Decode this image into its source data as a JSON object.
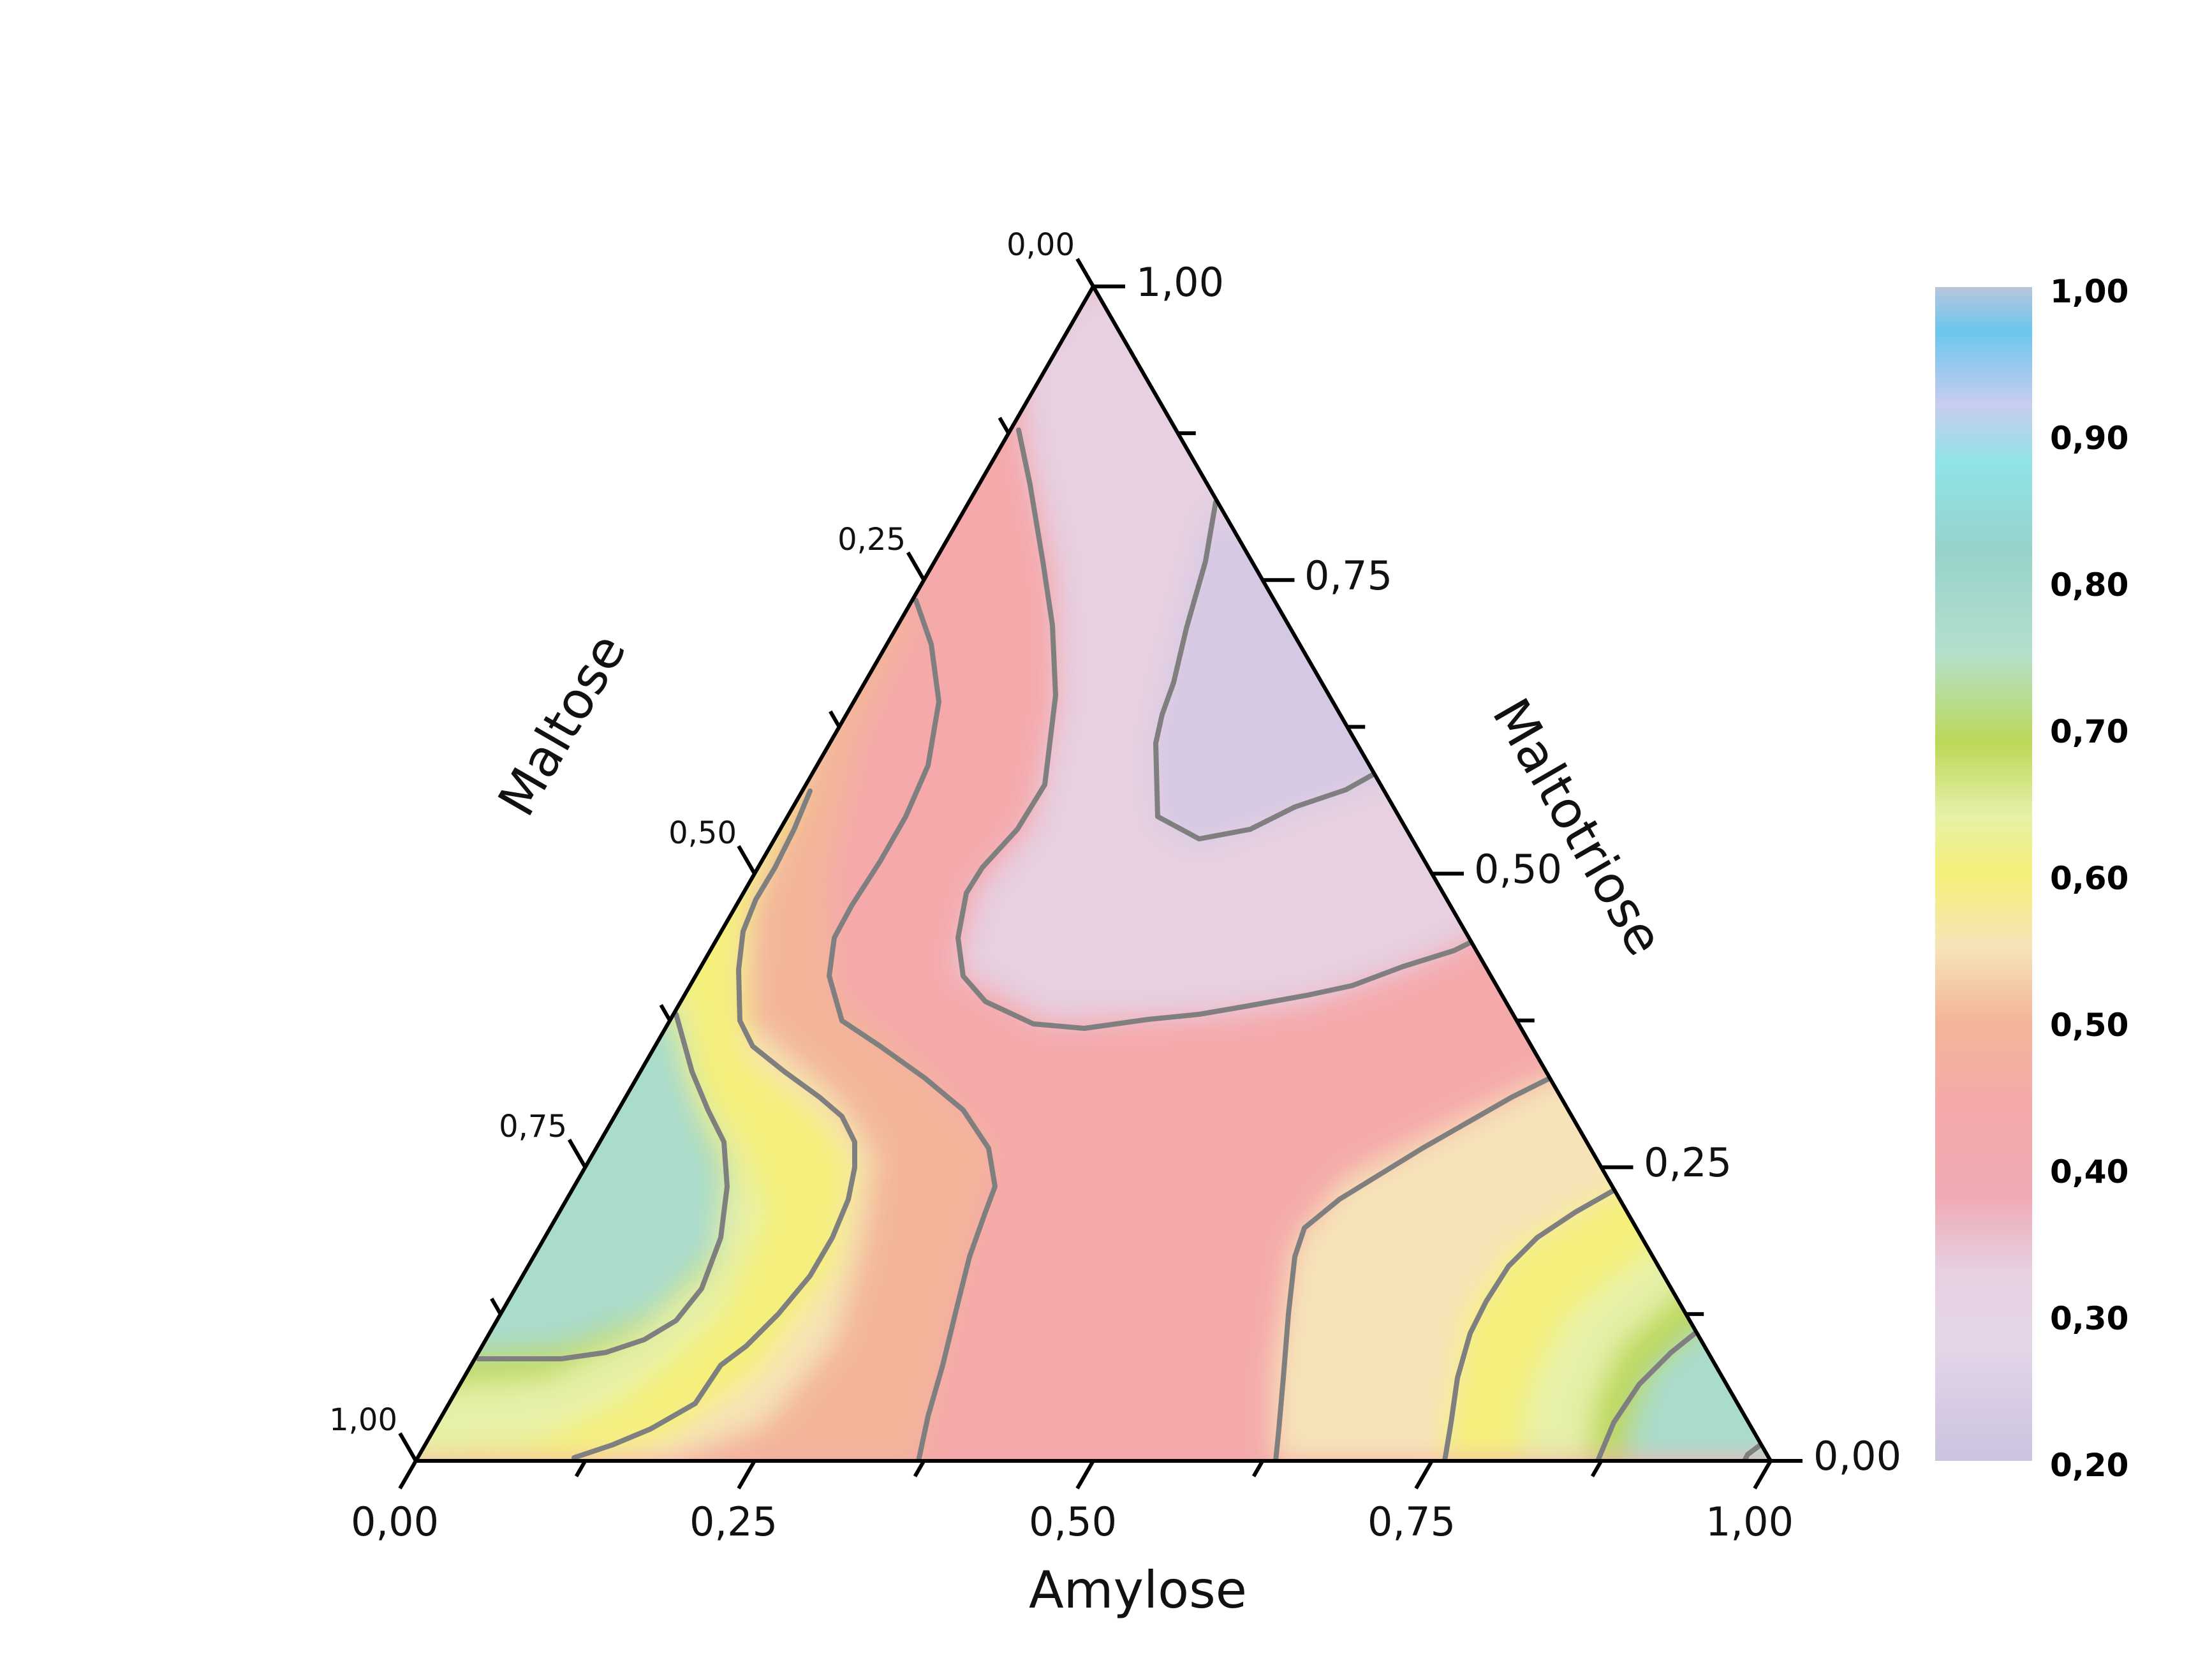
{
  "chart_data": {
    "type": "ternary-contour",
    "axes": {
      "bottom": {
        "title": "Amylose",
        "ticks": [
          "0,00",
          "0,25",
          "0,50",
          "0,75",
          "1,00"
        ]
      },
      "left": {
        "title": "Maltose",
        "ticks": [
          "0,00",
          "0,25",
          "0,50",
          "0,75",
          "1,00"
        ]
      },
      "right": {
        "title": "Maltotriose",
        "ticks": [
          "0,00",
          "0,25",
          "0,50",
          "0,75",
          "1,00"
        ]
      }
    },
    "colorbar": {
      "ticks": [
        "1,00",
        "0,90",
        "0,80",
        "0,70",
        "0,60",
        "0,50",
        "0,40",
        "0,30",
        "0,20"
      ],
      "range": [
        0.2,
        1.0
      ],
      "stops": [
        {
          "value": 1.0,
          "color": "#b8c6dc"
        },
        {
          "value": 0.97,
          "color": "#6cc6ee"
        },
        {
          "value": 0.92,
          "color": "#c7cdee"
        },
        {
          "value": 0.88,
          "color": "#8fe4e6"
        },
        {
          "value": 0.82,
          "color": "#98d2cc"
        },
        {
          "value": 0.75,
          "color": "#b4e0cc"
        },
        {
          "value": 0.69,
          "color": "#bcd857"
        },
        {
          "value": 0.64,
          "color": "#e6f0a8"
        },
        {
          "value": 0.6,
          "color": "#f5f07a"
        },
        {
          "value": 0.55,
          "color": "#f6e4b8"
        },
        {
          "value": 0.5,
          "color": "#f3b598"
        },
        {
          "value": 0.44,
          "color": "#f5a9ab"
        },
        {
          "value": 0.38,
          "color": "#f0aab4"
        },
        {
          "value": 0.33,
          "color": "#e6d0e2"
        },
        {
          "value": 0.28,
          "color": "#e5d5e8"
        },
        {
          "value": 0.2,
          "color": "#cbc3e0"
        }
      ]
    },
    "grid": false
  }
}
